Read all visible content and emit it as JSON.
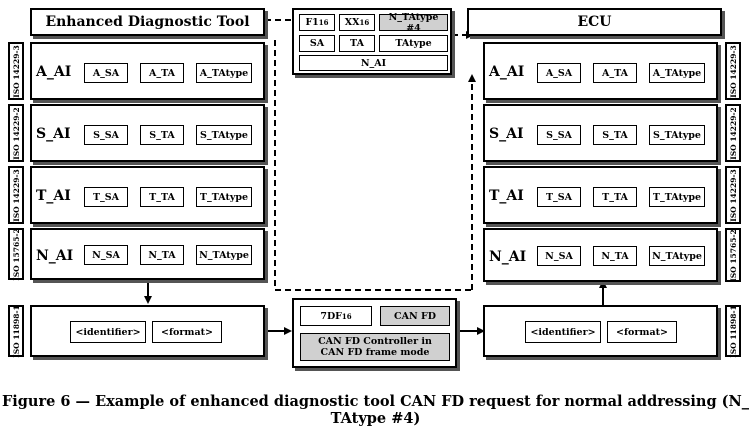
{
  "left": {
    "title": "Enhanced Diagnostic Tool",
    "layers": [
      {
        "iso": "ISO 14229-3",
        "name": "A_AI",
        "cells": [
          "A_SA",
          "A_TA",
          "A_TAtype"
        ]
      },
      {
        "iso": "ISO 14229-2",
        "name": "S_AI",
        "cells": [
          "S_SA",
          "S_TA",
          "S_TAtype"
        ]
      },
      {
        "iso": "ISO 14229-3",
        "name": "T_AI",
        "cells": [
          "T_SA",
          "T_TA",
          "T_TAtype"
        ]
      },
      {
        "iso": "ISO 15765-2",
        "name": "N_AI",
        "cells": [
          "N_SA",
          "N_TA",
          "N_TAtype"
        ]
      }
    ],
    "bottom": {
      "iso": "ISO 11898-1",
      "cells": [
        "<identifier>",
        "<format>"
      ]
    }
  },
  "right": {
    "title": "ECU",
    "layers": [
      {
        "iso": "ISO 14229-3",
        "name": "A_AI",
        "cells": [
          "A_SA",
          "A_TA",
          "A_TAtype"
        ]
      },
      {
        "iso": "ISO 14229-2",
        "name": "S_AI",
        "cells": [
          "S_SA",
          "S_TA",
          "S_TAtype"
        ]
      },
      {
        "iso": "ISO 14229-3",
        "name": "T_AI",
        "cells": [
          "T_SA",
          "T_TA",
          "T_TAtype"
        ]
      },
      {
        "iso": "ISO 15765-2",
        "name": "N_AI",
        "cells": [
          "N_SA",
          "N_TA",
          "N_TAtype"
        ]
      }
    ],
    "bottom": {
      "iso": "ISO 11898-1",
      "cells": [
        "<identifier>",
        "<format>"
      ]
    }
  },
  "message": {
    "f1": "F1",
    "f1_sub": "16",
    "xx": "XX",
    "xx_sub": "16",
    "ntatype": "N_TAtype #4",
    "sa": "SA",
    "ta": "TA",
    "tatype": "TAtype",
    "nai": "N_AI"
  },
  "frame": {
    "id": "7DF",
    "id_sub": "16",
    "canfd": "CAN FD",
    "controller": "CAN FD Controller in CAN FD frame mode"
  },
  "caption": {
    "line1": "Figure 6 — Example of enhanced diagnostic tool CAN FD request for normal addressing (N_",
    "line2": "TAtype #4)"
  }
}
